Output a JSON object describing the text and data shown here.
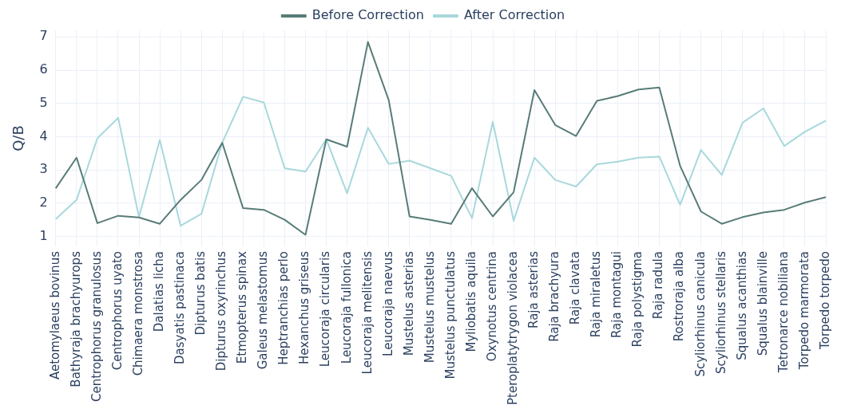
{
  "chart_data": {
    "type": "line",
    "ylabel": "Q/B",
    "ylim": [
      0.7,
      7.2
    ],
    "yticks": [
      1,
      2,
      3,
      4,
      5,
      6,
      7
    ],
    "grid": true,
    "legend": "top",
    "marker": "none",
    "line_style": "solid",
    "categories": [
      "Aetomylaeus bovinus",
      "Bathyraja brachyurops",
      "Centrophorus granulosus",
      "Centrophorus uyato",
      "Chimaera monstrosa",
      "Dalatias licha",
      "Dasyatis pastinaca",
      "Dipturus batis",
      "Dipturus oxyrinchus",
      "Etmopterus spinax",
      "Galeus melastomus",
      "Heptranchias perlo",
      "Hexanchus griseus",
      "Leucoraja circularis",
      "Leucoraja fullonica",
      "Leucoraja melitensis",
      "Leucoraja naevus",
      "Mustelus asterias",
      "Mustelus mustelus",
      "Mustelus punctulatus",
      "Myliobatis aquila",
      "Oxynotus centrina",
      "Pteroplatytrygon violacea",
      "Raja asterias",
      "Raja brachyura",
      "Raja clavata",
      "Raja miraletus",
      "Raja montagui",
      "Raja polystigma",
      "Raja radula",
      "Rostroraja alba",
      "Scyliorhinus canicula",
      "Scyliorhinus stellaris",
      "Squalus acanthias",
      "Squalus blainville",
      "Tetronarce nobiliana",
      "Torpedo marmorata",
      "Torpedo torpedo"
    ],
    "series": [
      {
        "name": "Before Correction",
        "color": "#587c78",
        "values": [
          2.45,
          3.37,
          1.4,
          1.62,
          1.57,
          1.38,
          2.1,
          2.7,
          3.82,
          1.85,
          1.8,
          1.5,
          1.05,
          3.92,
          3.7,
          6.85,
          5.1,
          1.6,
          1.5,
          1.38,
          2.45,
          1.6,
          2.33,
          5.4,
          4.35,
          4.02,
          5.08,
          5.22,
          5.42,
          5.48,
          3.12,
          1.75,
          1.38,
          1.58,
          1.72,
          1.8,
          2.02,
          2.18
        ]
      },
      {
        "name": "After Correction",
        "color": "#a8d8dc",
        "values": [
          1.52,
          2.1,
          3.95,
          4.57,
          1.58,
          3.9,
          1.32,
          1.68,
          3.82,
          5.2,
          5.03,
          3.05,
          2.95,
          3.92,
          2.3,
          4.27,
          3.18,
          3.28,
          3.05,
          2.82,
          1.55,
          4.45,
          1.47,
          3.37,
          2.7,
          2.5,
          3.17,
          3.25,
          3.37,
          3.4,
          1.95,
          3.6,
          2.85,
          4.42,
          4.85,
          3.72,
          4.15,
          4.48
        ]
      }
    ]
  }
}
